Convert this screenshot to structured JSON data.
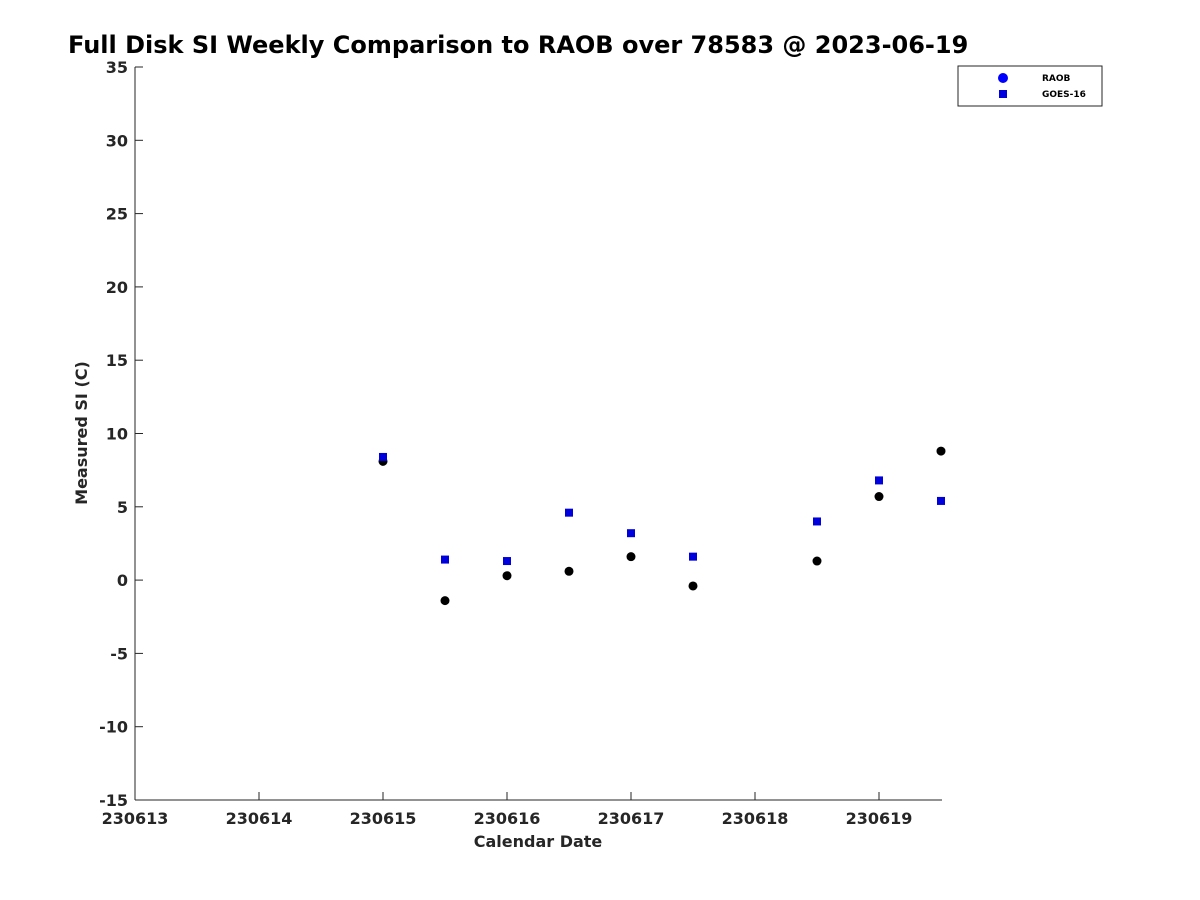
{
  "chart_data": {
    "type": "scatter",
    "title": "Full Disk SI Weekly Comparison to RAOB over 78583 @ 2023-06-19",
    "xlabel": "Calendar Date",
    "ylabel": "Measured SI (C)",
    "xlim": [
      230613,
      230619.5
    ],
    "ylim": [
      -15,
      35
    ],
    "x_ticks": [
      230613,
      230614,
      230615,
      230616,
      230617,
      230618,
      230619
    ],
    "y_ticks": [
      -15,
      -10,
      -5,
      0,
      5,
      10,
      15,
      20,
      25,
      30,
      35
    ],
    "x_tick_labels": [
      "230613",
      "230614",
      "230615",
      "230616",
      "230617",
      "230618",
      "230619"
    ],
    "y_tick_labels": [
      "-15",
      "-10",
      "-5",
      "0",
      "5",
      "10",
      "15",
      "20",
      "25",
      "30",
      "35"
    ],
    "grid": false,
    "legend_position": "top-right",
    "series": [
      {
        "name": "RAOB",
        "marker": "circle",
        "color": "#000000",
        "legend_color": "#0000ff",
        "x": [
          230615.0,
          230615.5,
          230616.0,
          230616.5,
          230617.0,
          230617.5,
          230618.5,
          230619.0,
          230619.5
        ],
        "y": [
          8.1,
          -1.4,
          0.3,
          0.6,
          1.6,
          -0.4,
          1.3,
          5.7,
          8.8
        ]
      },
      {
        "name": "GOES-16",
        "marker": "square",
        "color": "#0000dd",
        "legend_color": "#0000dd",
        "x": [
          230615.0,
          230615.5,
          230616.0,
          230616.5,
          230617.0,
          230617.5,
          230618.5,
          230619.0,
          230619.5
        ],
        "y": [
          8.4,
          1.4,
          1.3,
          4.6,
          3.2,
          1.6,
          4.0,
          6.8,
          5.4
        ]
      }
    ]
  }
}
